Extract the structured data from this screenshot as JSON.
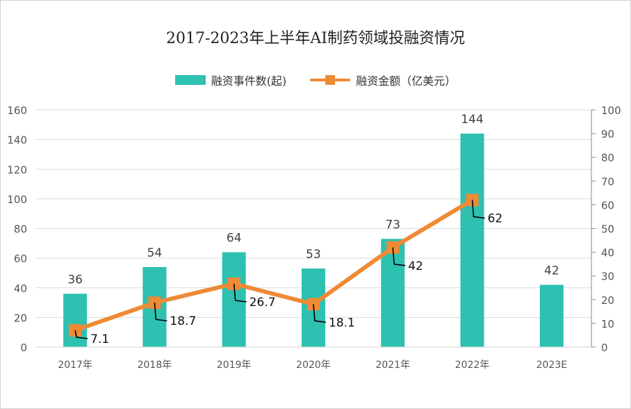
{
  "title": "2017-2023年上半年AI制药领域投融资情况",
  "colors": {
    "bar": "#2ec0b0",
    "line": "#ef8a36",
    "grid": "#d9d9d9",
    "axis": "#888888",
    "text": "#555555"
  },
  "chart_data": {
    "type": "bar",
    "title": "2017-2023年上半年AI制药领域投融资情况",
    "categories": [
      "2017年",
      "2018年",
      "2019年",
      "2020年",
      "2021年",
      "2022年",
      "2023E"
    ],
    "legend_position": "top",
    "grid": true,
    "series": [
      {
        "name": "融资事件数(起)",
        "type": "bar",
        "axis": "left",
        "values": [
          36,
          54,
          64,
          53,
          73,
          144,
          42
        ],
        "labels": [
          "36",
          "54",
          "64",
          "53",
          "73",
          "144",
          "42"
        ]
      },
      {
        "name": "融资金额（亿美元）",
        "type": "line",
        "axis": "right",
        "values": [
          7.1,
          18.7,
          26.7,
          18.1,
          42,
          62,
          null
        ],
        "labels": [
          "7.1",
          "18.7",
          "26.7",
          "18.1",
          "42",
          "62",
          ""
        ]
      }
    ],
    "y_left": {
      "min": 0,
      "max": 160,
      "step": 20,
      "ticks": [
        "0",
        "20",
        "40",
        "60",
        "80",
        "100",
        "120",
        "140",
        "160"
      ]
    },
    "y_right": {
      "min": 0,
      "max": 100,
      "step": 10,
      "ticks": [
        "0",
        "10",
        "20",
        "30",
        "40",
        "50",
        "60",
        "70",
        "80",
        "90",
        "100"
      ]
    }
  }
}
